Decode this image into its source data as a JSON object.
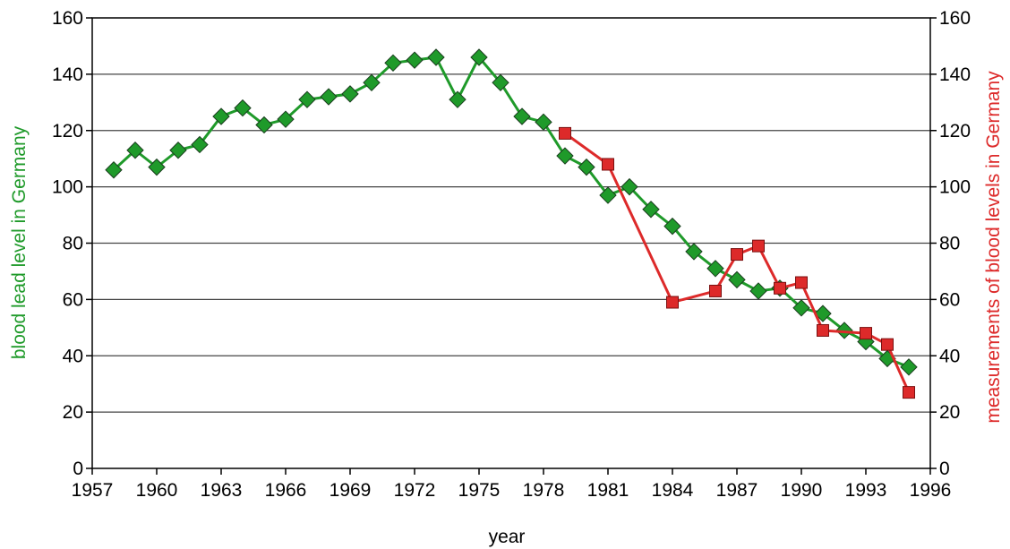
{
  "chart_data": {
    "type": "line",
    "xlabel": "year",
    "ylabel_left": "blood lead level in Germany",
    "ylabel_right": "measurements of blood levels in Germany",
    "xlim": [
      1957,
      1996
    ],
    "ylim": [
      0,
      160
    ],
    "x_ticks": [
      "1957",
      "1960",
      "1963",
      "1966",
      "1969",
      "1972",
      "1975",
      "1978",
      "1981",
      "1984",
      "1987",
      "1990",
      "1993",
      "1996"
    ],
    "y_ticks": [
      "0",
      "20",
      "40",
      "60",
      "80",
      "100",
      "120",
      "140",
      "160"
    ],
    "grid": true,
    "series": [
      {
        "axis": "left",
        "color": "#1f9a2a",
        "marker": "diamond",
        "x": [
          1958,
          1959,
          1960,
          1961,
          1962,
          1963,
          1964,
          1965,
          1966,
          1967,
          1968,
          1969,
          1970,
          1971,
          1972,
          1973,
          1974,
          1975,
          1976,
          1977,
          1978,
          1979,
          1980,
          1981,
          1982,
          1983,
          1984,
          1985,
          1986,
          1987,
          1988,
          1989,
          1990,
          1991,
          1992,
          1993,
          1994,
          1995
        ],
        "values": [
          106,
          113,
          107,
          113,
          115,
          125,
          128,
          122,
          124,
          131,
          132,
          133,
          137,
          144,
          145,
          146,
          131,
          146,
          137,
          125,
          123,
          111,
          107,
          97,
          100,
          92,
          86,
          77,
          71,
          67,
          63,
          64,
          57,
          55,
          49,
          45,
          39,
          36
        ]
      },
      {
        "axis": "right",
        "color": "#dd2a2a",
        "marker": "square",
        "x": [
          1979,
          1981,
          1984,
          1986,
          1987,
          1988,
          1989,
          1990,
          1991,
          1993,
          1994,
          1995
        ],
        "values": [
          119,
          108,
          59,
          63,
          76,
          79,
          64,
          66,
          49,
          48,
          44,
          27
        ]
      }
    ]
  }
}
